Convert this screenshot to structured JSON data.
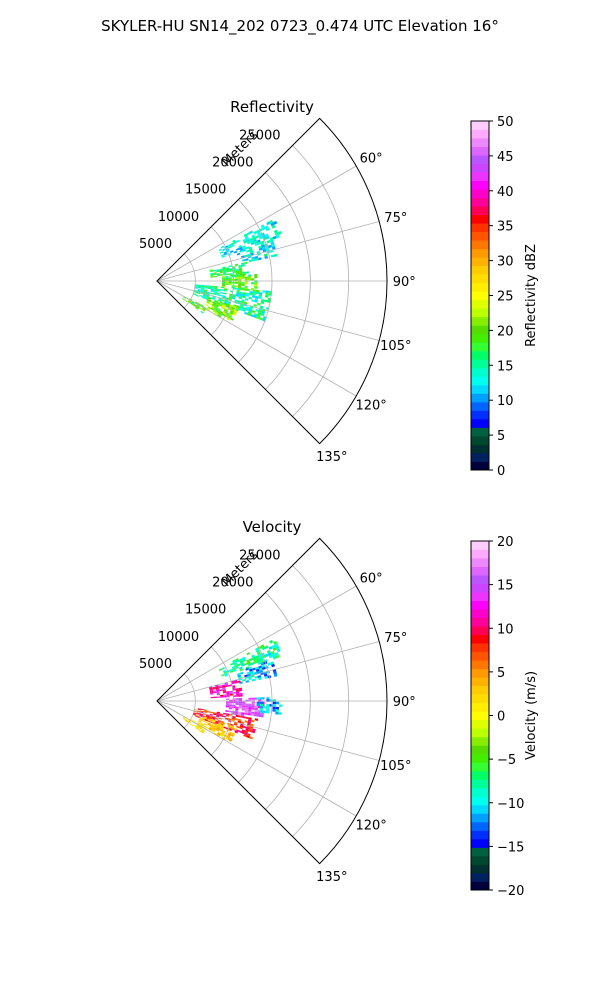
{
  "figure": {
    "suptitle": "SKYLER-HU  SN14_202  0723_0.474 UTC Elevation 16°"
  },
  "chart_data": [
    {
      "type": "polar-sector",
      "title": "Reflectivity",
      "radial_label": "Meters",
      "radial_ticks": [
        5000,
        10000,
        15000,
        20000,
        25000
      ],
      "radial_tick_labels": [
        "5000",
        "10000",
        "15000",
        "20000",
        "25000"
      ],
      "rmax": 30000,
      "theta_range_deg": [
        45,
        135
      ],
      "theta_ticks": [
        60,
        75,
        90,
        105,
        120,
        135
      ],
      "theta_tick_labels": [
        "60°",
        "75°",
        "90°",
        "105°",
        "120°",
        "135°"
      ],
      "grid": true,
      "colorbar": {
        "label": "Reflectivity dBZ",
        "range": [
          0,
          50
        ],
        "ticks": [
          0,
          5,
          10,
          15,
          20,
          25,
          30,
          35,
          40,
          45,
          50
        ],
        "tick_labels": [
          "0",
          "5",
          "10",
          "15",
          "20",
          "25",
          "30",
          "35",
          "40",
          "45",
          "50"
        ],
        "colors": [
          "#00003a",
          "#002060",
          "#003030",
          "#004830",
          "#006040",
          "#0000ff",
          "#0030ff",
          "#0066ff",
          "#00a0ff",
          "#00d8ff",
          "#00ffee",
          "#00ffcc",
          "#00ff99",
          "#00ff66",
          "#33ff33",
          "#44ee00",
          "#55dd00",
          "#88ee00",
          "#bbff00",
          "#ddff00",
          "#ffff00",
          "#ffee00",
          "#ffdd00",
          "#ffcc00",
          "#ffb300",
          "#ff9900",
          "#ff7700",
          "#ff5500",
          "#ff3300",
          "#ff0000",
          "#ff0055",
          "#ff0099",
          "#ff00cc",
          "#ff00ff",
          "#ee33ff",
          "#cc44ff",
          "#bb55ff",
          "#dd66ff",
          "#ee88ff",
          "#ffaaff",
          "#ffccff"
        ]
      },
      "echo_regions": [
        {
          "theta_range": [
            62,
            70
          ],
          "r_range": [
            9000,
            17000
          ],
          "value_mean": 13,
          "value_spread": 3,
          "density": 0.55
        },
        {
          "theta_range": [
            70,
            78
          ],
          "r_range": [
            11000,
            16000
          ],
          "value_mean": 13,
          "value_spread": 3,
          "density": 0.6
        },
        {
          "theta_range": [
            78,
            86
          ],
          "r_range": [
            7000,
            12000
          ],
          "value_mean": 17,
          "value_spread": 3,
          "density": 0.65
        },
        {
          "theta_range": [
            86,
            95
          ],
          "r_range": [
            8500,
            13000
          ],
          "value_mean": 19,
          "value_spread": 4,
          "density": 0.7
        },
        {
          "theta_range": [
            95,
            110
          ],
          "r_range": [
            5000,
            15000
          ],
          "value_mean": 15,
          "value_spread": 4,
          "density": 0.6
        },
        {
          "theta_range": [
            108,
            120
          ],
          "r_range": [
            7000,
            11000
          ],
          "value_mean": 21,
          "value_spread": 3,
          "density": 0.7
        },
        {
          "theta_range": [
            118,
            125
          ],
          "r_range": [
            4000,
            7000
          ],
          "value_mean": 19,
          "value_spread": 3,
          "density": 0.65
        }
      ]
    },
    {
      "type": "polar-sector",
      "title": "Velocity",
      "radial_label": "Meters",
      "radial_ticks": [
        5000,
        10000,
        15000,
        20000,
        25000
      ],
      "radial_tick_labels": [
        "5000",
        "10000",
        "15000",
        "20000",
        "25000"
      ],
      "rmax": 30000,
      "theta_range_deg": [
        45,
        135
      ],
      "theta_ticks": [
        60,
        75,
        90,
        105,
        120,
        135
      ],
      "theta_tick_labels": [
        "60°",
        "75°",
        "90°",
        "105°",
        "120°",
        "135°"
      ],
      "grid": true,
      "colorbar": {
        "label": "Velocity (m/s)",
        "range": [
          -20,
          20
        ],
        "ticks": [
          -20,
          -15,
          -10,
          -5,
          0,
          5,
          10,
          15,
          20
        ],
        "tick_labels": [
          "−20",
          "−15",
          "−10",
          "−5",
          "0",
          "5",
          "10",
          "15",
          "20"
        ],
        "colors": [
          "#00003a",
          "#002060",
          "#003030",
          "#004830",
          "#006040",
          "#0000ff",
          "#0030ff",
          "#0066ff",
          "#00a0ff",
          "#00d8ff",
          "#00ffee",
          "#00ffcc",
          "#00ff99",
          "#00ff66",
          "#33ff33",
          "#44ee00",
          "#55dd00",
          "#88ee00",
          "#bbff00",
          "#ddff00",
          "#ffff00",
          "#ffee00",
          "#ffdd00",
          "#ffcc00",
          "#ffb300",
          "#ff9900",
          "#ff7700",
          "#ff5500",
          "#ff3300",
          "#ff0000",
          "#ff0055",
          "#ff0099",
          "#ff00cc",
          "#ff00ff",
          "#ee33ff",
          "#cc44ff",
          "#bb55ff",
          "#dd66ff",
          "#ee88ff",
          "#ffaaff",
          "#ffccff"
        ]
      },
      "echo_regions": [
        {
          "theta_range": [
            62,
            70
          ],
          "r_range": [
            9000,
            17000
          ],
          "value_mean": -8,
          "value_spread": 3,
          "density": 0.55
        },
        {
          "theta_range": [
            70,
            78
          ],
          "r_range": [
            11000,
            16000
          ],
          "value_mean": -11,
          "value_spread": 3,
          "density": 0.6
        },
        {
          "theta_range": [
            75,
            86
          ],
          "r_range": [
            7000,
            11000
          ],
          "value_mean": 12,
          "value_spread": 3,
          "density": 0.65
        },
        {
          "theta_range": [
            88,
            100
          ],
          "r_range": [
            9000,
            14000
          ],
          "value_mean": 15,
          "value_spread": 3,
          "density": 0.7
        },
        {
          "theta_range": [
            88,
            96
          ],
          "r_range": [
            13000,
            16000
          ],
          "value_mean": -11,
          "value_spread": 3,
          "density": 0.55
        },
        {
          "theta_range": [
            100,
            112
          ],
          "r_range": [
            5000,
            13000
          ],
          "value_mean": 8,
          "value_spread": 3,
          "density": 0.65
        },
        {
          "theta_range": [
            108,
            120
          ],
          "r_range": [
            6000,
            11000
          ],
          "value_mean": 3,
          "value_spread": 2,
          "density": 0.7
        },
        {
          "theta_range": [
            118,
            125
          ],
          "r_range": [
            4000,
            7000
          ],
          "value_mean": 1,
          "value_spread": 2,
          "density": 0.65
        }
      ]
    }
  ]
}
